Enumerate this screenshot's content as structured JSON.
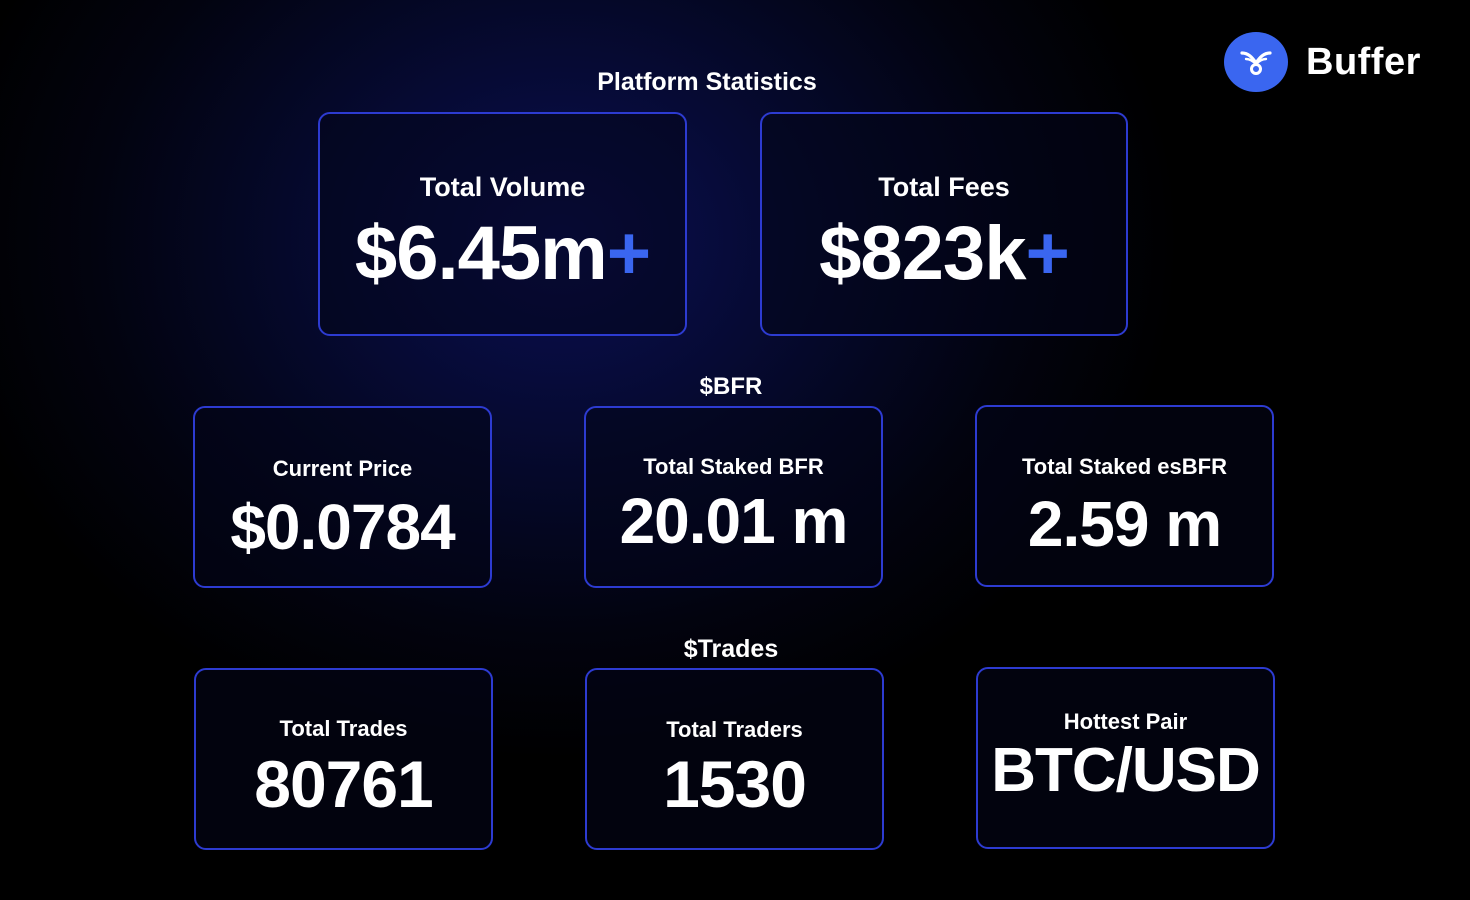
{
  "brand": {
    "name": "Buffer",
    "icon": "buffer-logo-icon",
    "accent_color": "#3a66f0"
  },
  "sections": {
    "platform": {
      "title": "Platform Statistics",
      "total_volume": {
        "label": "Total Volume",
        "value": "$6.45m",
        "suffix": "+"
      },
      "total_fees": {
        "label": "Total Fees",
        "value": "$823k",
        "suffix": "+"
      }
    },
    "bfr": {
      "title": "$BFR",
      "current_price": {
        "label": "Current Price",
        "value": "$0.0784"
      },
      "total_staked_bfr": {
        "label": "Total Staked BFR",
        "value": "20.01 m"
      },
      "total_staked_esbfr": {
        "label": "Total Staked esBFR",
        "value": "2.59 m"
      }
    },
    "trades": {
      "title": "$Trades",
      "total_trades": {
        "label": "Total Trades",
        "value": "80761"
      },
      "total_traders": {
        "label": "Total Traders",
        "value": "1530"
      },
      "hottest_pair": {
        "label": "Hottest Pair",
        "value": "BTC/USD"
      }
    }
  },
  "colors": {
    "card_border": "#2d3bd1",
    "background": "#000000",
    "glow": "#0a0f52"
  }
}
